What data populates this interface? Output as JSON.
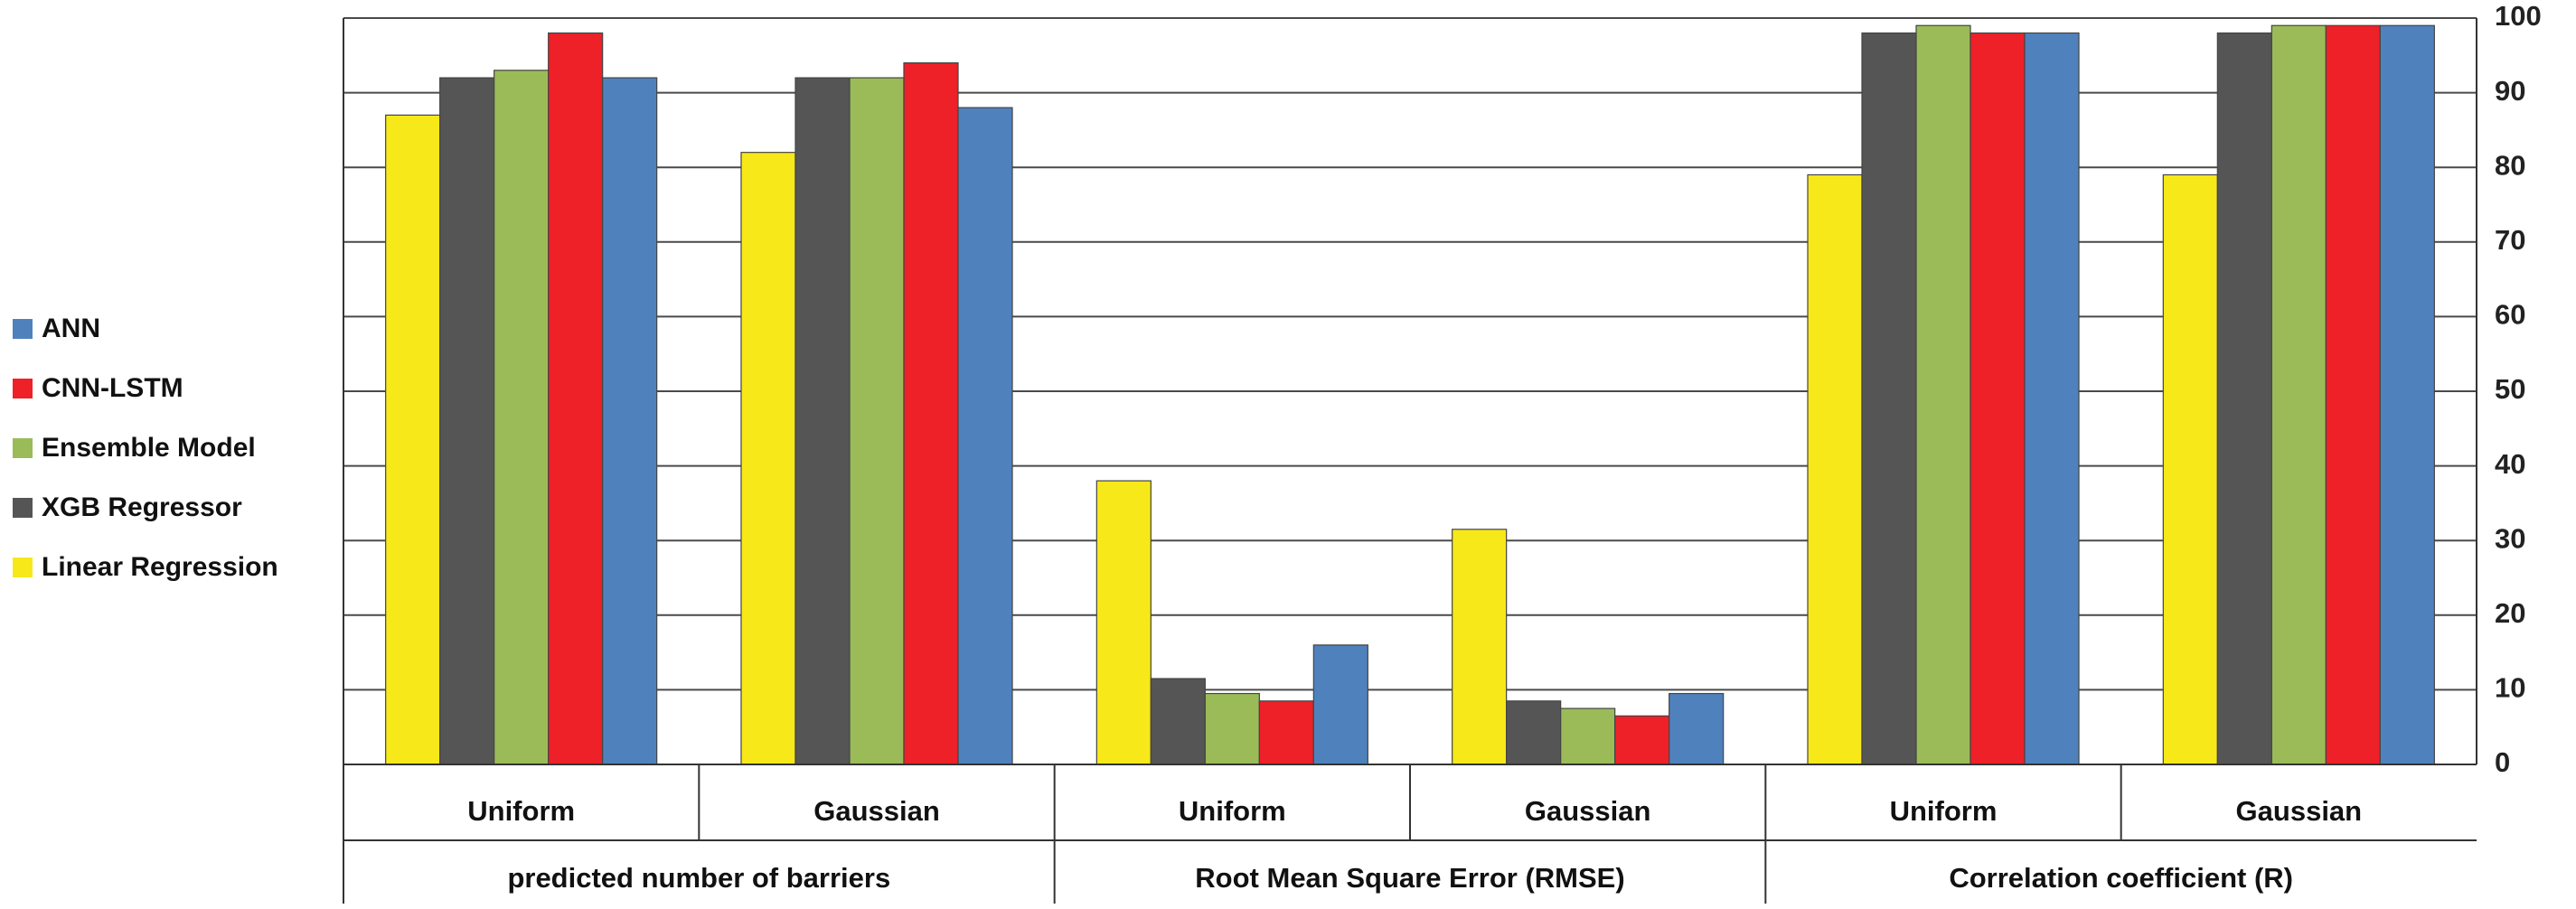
{
  "chart_data": {
    "type": "bar",
    "groups": [
      {
        "label": "predicted number of barriers",
        "subcategories": [
          "Uniform",
          "Gaussian"
        ]
      },
      {
        "label": "Root Mean Square Error (RMSE)",
        "subcategories": [
          "Uniform",
          "Gaussian"
        ]
      },
      {
        "label": "Correlation coefficient (R)",
        "subcategories": [
          "Uniform",
          "Gaussian"
        ]
      }
    ],
    "categories": [
      "Uniform",
      "Gaussian",
      "Uniform",
      "Gaussian",
      "Uniform",
      "Gaussian"
    ],
    "series": [
      {
        "name": "Linear Regression",
        "color": "#f7e81a",
        "values": [
          87,
          82,
          38,
          31.5,
          79,
          79
        ]
      },
      {
        "name": "XGB Regressor",
        "color": "#555555",
        "values": [
          92,
          92,
          11.5,
          8.5,
          98,
          98
        ]
      },
      {
        "name": "Ensemble Model",
        "color": "#9bbb59",
        "values": [
          93,
          92,
          9.5,
          7.5,
          99,
          99
        ]
      },
      {
        "name": "CNN-LSTM",
        "color": "#ee2028",
        "values": [
          98,
          94,
          8.5,
          6.5,
          98,
          99
        ]
      },
      {
        "name": "ANN",
        "color": "#4f81bd",
        "values": [
          92,
          88,
          16,
          9.5,
          98,
          99
        ]
      }
    ],
    "legend_order": [
      "ANN",
      "CNN-LSTM",
      "Ensemble Model",
      "XGB Regressor",
      "Linear Regression"
    ],
    "legend_position": "left",
    "ylim": [
      0,
      100
    ],
    "yticks": [
      0,
      10,
      20,
      30,
      40,
      50,
      60,
      70,
      80,
      90,
      100
    ],
    "y_axis_side": "right",
    "grid": true,
    "title": "",
    "xlabel": "",
    "ylabel": ""
  }
}
